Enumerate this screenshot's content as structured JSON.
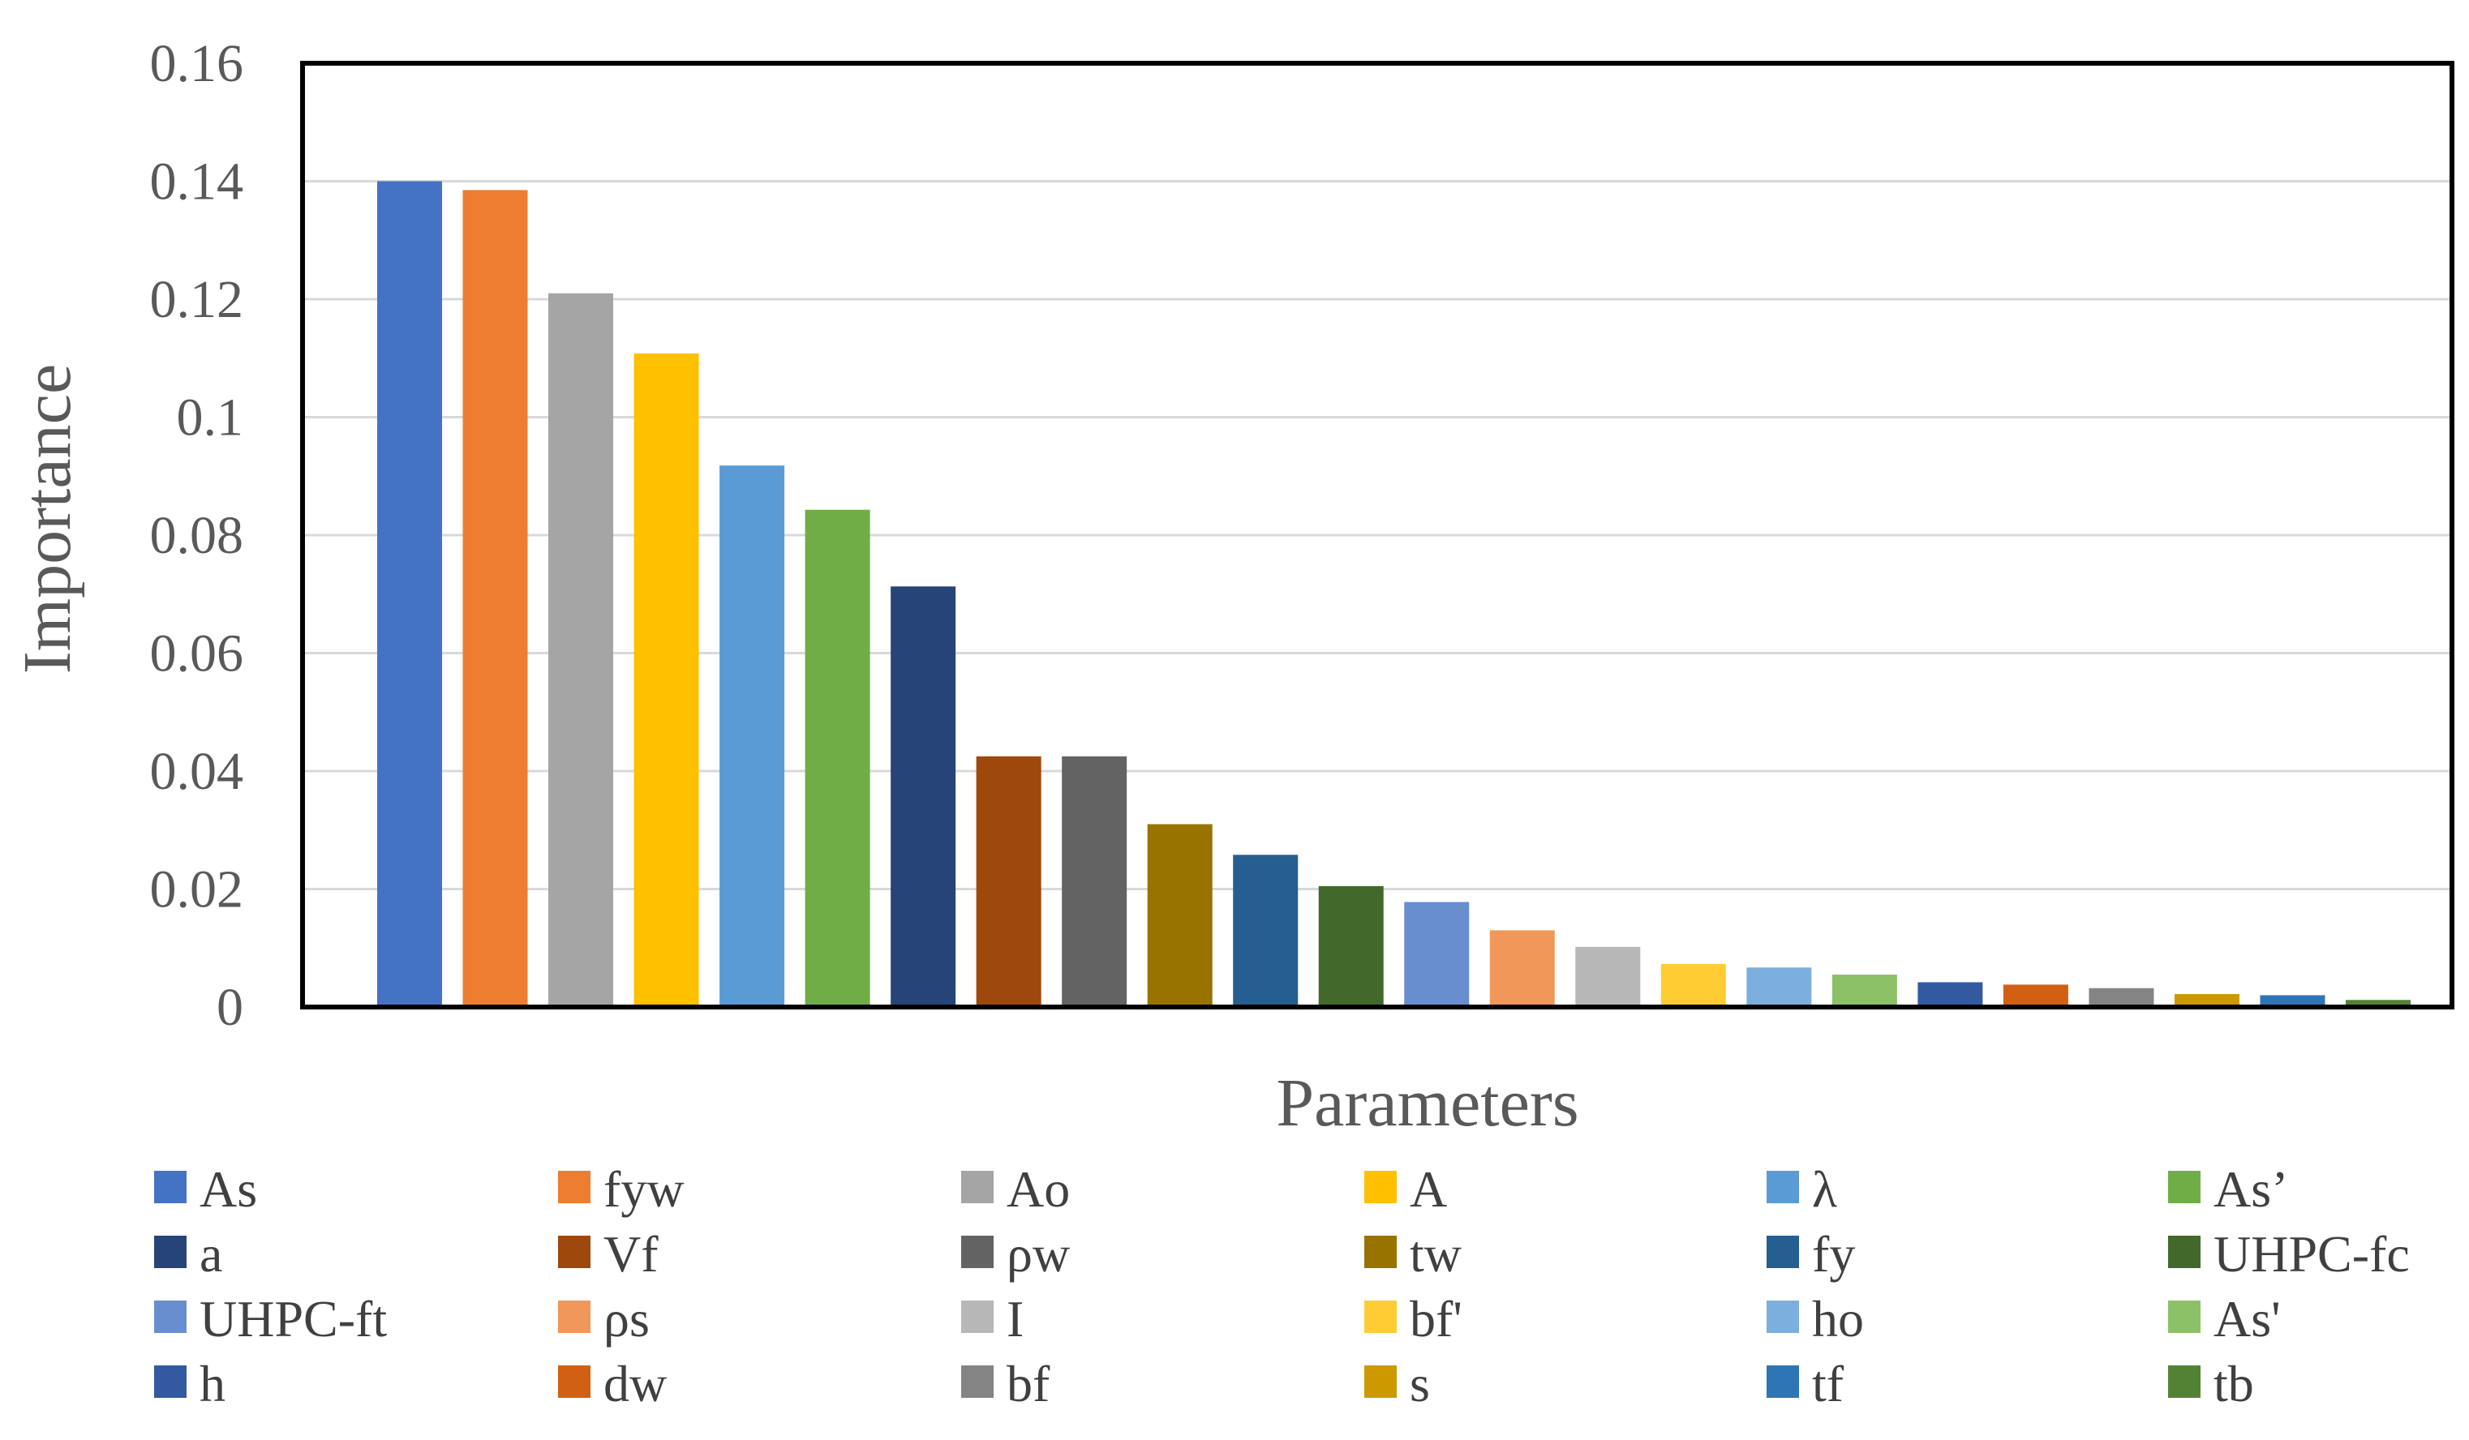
{
  "chart_data": {
    "type": "bar",
    "xlabel": "Parameters",
    "ylabel": "Importance",
    "ylim": [
      0,
      0.16
    ],
    "yticks": [
      0,
      0.02,
      0.04,
      0.06,
      0.08,
      0.1,
      0.12,
      0.14,
      0.16
    ],
    "ytick_labels": [
      "0",
      "0.02",
      "0.04",
      "0.06",
      "0.08",
      "0.1",
      "0.12",
      "0.14",
      "0.16"
    ],
    "grid": true,
    "legend_position": "bottom",
    "bars": [
      {
        "label": "As",
        "value": 0.14,
        "color": "#4472C4"
      },
      {
        "label": "fyw",
        "value": 0.1385,
        "color": "#ED7D31"
      },
      {
        "label": "Ao",
        "value": 0.121,
        "color": "#A5A5A5"
      },
      {
        "label": "A",
        "value": 0.1108,
        "color": "#FFC000"
      },
      {
        "label": "λ",
        "value": 0.0918,
        "color": "#5B9BD5"
      },
      {
        "label": "As’",
        "value": 0.0843,
        "color": "#70AD47"
      },
      {
        "label": "a",
        "value": 0.0713,
        "color": "#264478"
      },
      {
        "label": "Vf",
        "value": 0.0425,
        "color": "#9E480E"
      },
      {
        "label": "ρw",
        "value": 0.0425,
        "color": "#636363"
      },
      {
        "label": "tw",
        "value": 0.031,
        "color": "#997300"
      },
      {
        "label": "fy",
        "value": 0.0258,
        "color": "#255E91"
      },
      {
        "label": "UHPC-fc",
        "value": 0.0205,
        "color": "#43682B"
      },
      {
        "label": "UHPC-ft",
        "value": 0.0178,
        "color": "#698ED0"
      },
      {
        "label": "ρs",
        "value": 0.013,
        "color": "#F1975A"
      },
      {
        "label": "I",
        "value": 0.0102,
        "color": "#B7B7B7"
      },
      {
        "label": "bf'",
        "value": 0.0073,
        "color": "#FFCD33"
      },
      {
        "label": "ho",
        "value": 0.0067,
        "color": "#7CAFDD"
      },
      {
        "label": "As'",
        "value": 0.0055,
        "color": "#8CC168"
      },
      {
        "label": "h",
        "value": 0.0042,
        "color": "#335AA1"
      },
      {
        "label": "dw",
        "value": 0.0038,
        "color": "#D26012"
      },
      {
        "label": "bf",
        "value": 0.0032,
        "color": "#848484"
      },
      {
        "label": "s",
        "value": 0.0022,
        "color": "#CC9A00"
      },
      {
        "label": "tf",
        "value": 0.002,
        "color": "#2E75B6"
      },
      {
        "label": "tb",
        "value": 0.0012,
        "color": "#548235"
      }
    ]
  }
}
